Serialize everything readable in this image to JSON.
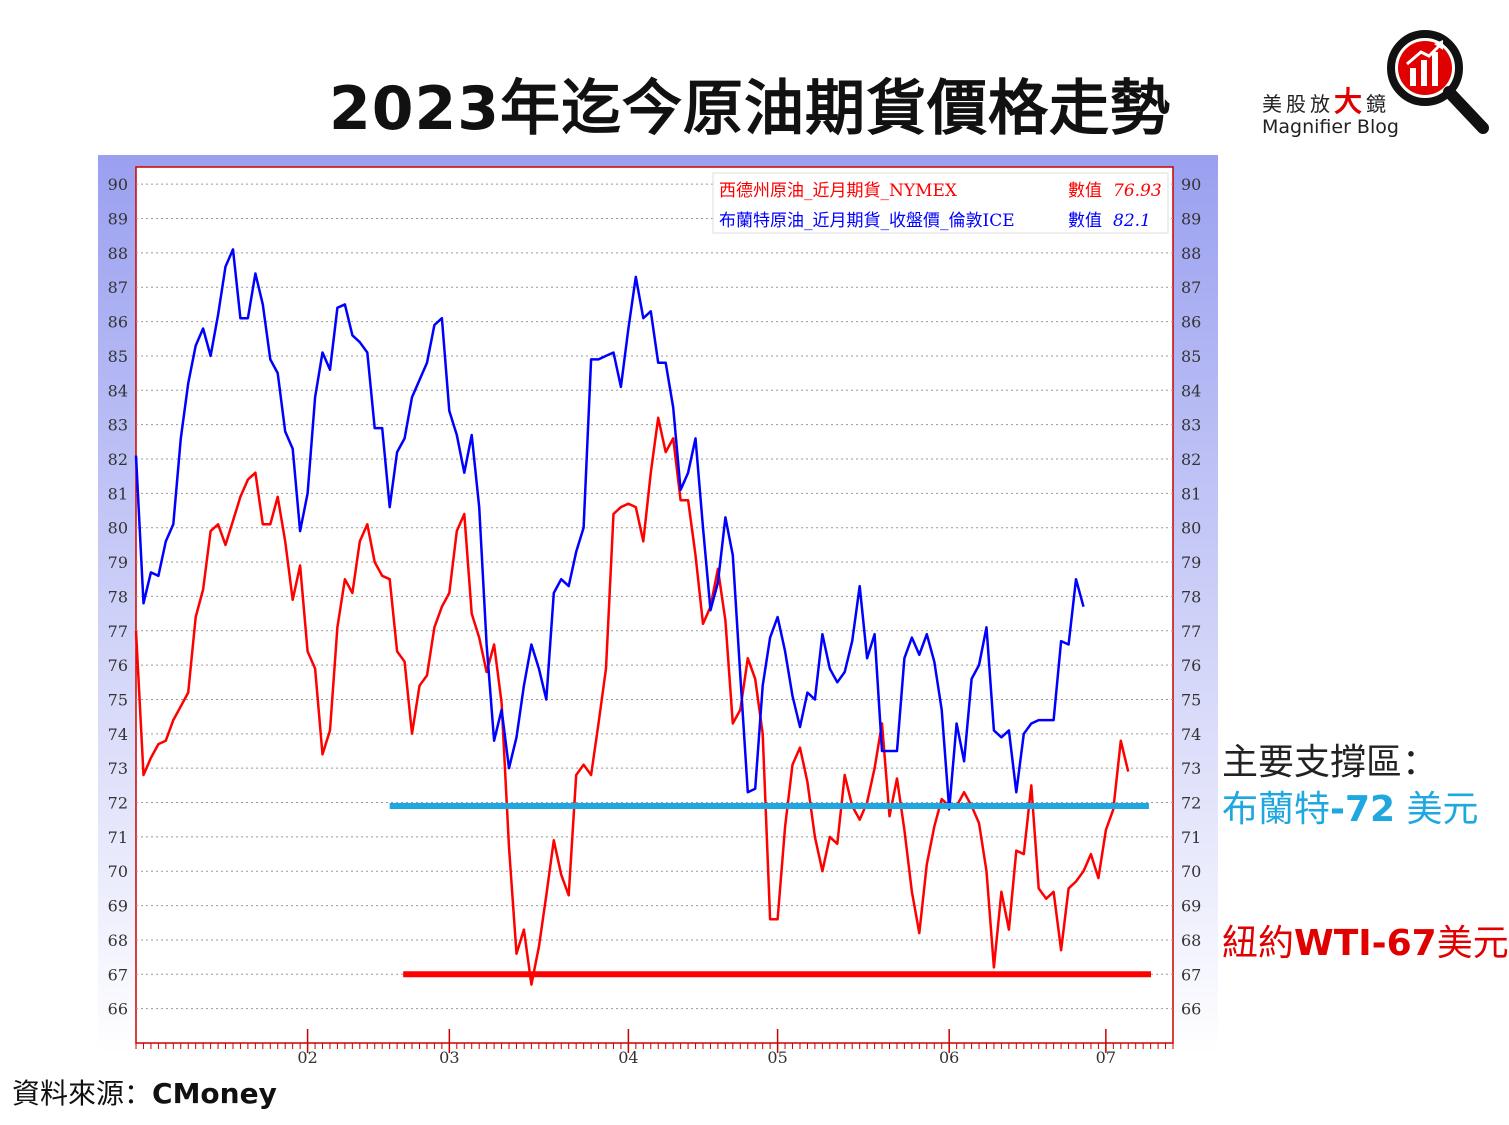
{
  "page": {
    "title": "2023年迄今原油期貨價格走勢",
    "logo": {
      "cn_1": "美股放",
      "cn_big": "大",
      "cn_2": "鏡",
      "en": "Magnifier Blog"
    },
    "support_title": "主要支撐區：",
    "brent_support": {
      "name": "布蘭特",
      "value": "-72",
      "unit": " 美元"
    },
    "wti_support": {
      "name": "紐約",
      "value": "WTI-67",
      "unit": "美元"
    },
    "source_label": "資料來源：",
    "source_value": "CMoney"
  },
  "colors": {
    "wti": "#ff0000",
    "brent": "#0000ff",
    "brent_support": "#1fa7e0",
    "wti_support": "#ff0000",
    "axis_band": "#9aa0f0"
  },
  "chart_data": {
    "type": "line",
    "title": "",
    "xlabel": "",
    "ylabel": "",
    "ylim": [
      65,
      90.5
    ],
    "x_ticks": [
      {
        "label": "02",
        "pos": 23
      },
      {
        "label": "03",
        "pos": 42
      },
      {
        "label": "04",
        "pos": 66
      },
      {
        "label": "05",
        "pos": 86
      },
      {
        "label": "06",
        "pos": 109
      },
      {
        "label": "07",
        "pos": 130
      }
    ],
    "x_range": [
      0,
      139
    ],
    "y_ticks": [
      66,
      67,
      68,
      69,
      70,
      71,
      72,
      73,
      74,
      75,
      76,
      77,
      78,
      79,
      80,
      81,
      82,
      83,
      84,
      85,
      86,
      87,
      88,
      89,
      90
    ],
    "grid": true,
    "legend_position": "top-right",
    "series": [
      {
        "name": "西德州原油_近月期貨_NYMEX",
        "value_label": "數值",
        "value": "76.93",
        "color": "#ff0000",
        "values": [
          77.0,
          72.8,
          73.3,
          73.7,
          73.8,
          74.4,
          74.8,
          75.2,
          77.4,
          78.2,
          79.9,
          80.1,
          79.5,
          80.2,
          80.9,
          81.4,
          81.6,
          80.1,
          80.1,
          80.9,
          79.6,
          77.9,
          78.9,
          76.4,
          75.9,
          73.4,
          74.1,
          77.1,
          78.5,
          78.1,
          79.6,
          80.1,
          79.0,
          78.6,
          78.5,
          76.4,
          76.1,
          74.0,
          75.4,
          75.7,
          77.1,
          77.7,
          78.1,
          79.9,
          80.4,
          77.5,
          76.8,
          75.8,
          76.6,
          74.9,
          70.7,
          67.6,
          68.3,
          66.7,
          67.8,
          69.3,
          70.9,
          69.9,
          69.3,
          72.8,
          73.1,
          72.8,
          74.3,
          75.9,
          80.4,
          80.6,
          80.7,
          80.6,
          79.6,
          81.6,
          83.2,
          82.2,
          82.6,
          80.8,
          80.8,
          79.2,
          77.2,
          77.7,
          78.8,
          77.3,
          74.3,
          74.7,
          76.2,
          75.6,
          74.0,
          68.6,
          68.6,
          71.3,
          73.1,
          73.6,
          72.6,
          71.0,
          70.0,
          71.0,
          70.8,
          72.8,
          71.9,
          71.5,
          72.0,
          73.0,
          74.3,
          71.6,
          72.7,
          71.2,
          69.4,
          68.2,
          70.2,
          71.3,
          72.1,
          71.9,
          71.9,
          72.3,
          71.9,
          71.4,
          70.0,
          67.2,
          69.4,
          68.3,
          70.6,
          70.5,
          72.5,
          69.5,
          69.2,
          69.4,
          67.7,
          69.5,
          69.7,
          70.0,
          70.5,
          69.8,
          71.2,
          71.8,
          73.8,
          72.9
        ],
        "x_start": 0
      },
      {
        "name": "布蘭特原油_近月期貨_收盤價_倫敦ICE",
        "value_label": "數值",
        "value": "82.1",
        "color": "#0000ff",
        "values": [
          82.1,
          77.8,
          78.7,
          78.6,
          79.6,
          80.1,
          82.6,
          84.2,
          85.3,
          85.8,
          85.0,
          86.2,
          87.6,
          88.1,
          86.1,
          86.1,
          87.4,
          86.5,
          84.9,
          84.5,
          82.8,
          82.3,
          79.9,
          81.0,
          83.8,
          85.1,
          84.6,
          86.4,
          86.5,
          85.6,
          85.4,
          85.1,
          82.9,
          82.9,
          80.6,
          82.2,
          82.6,
          83.8,
          84.3,
          84.8,
          85.9,
          86.1,
          83.4,
          82.7,
          81.6,
          82.7,
          80.6,
          76.6,
          73.8,
          74.7,
          73.0,
          73.9,
          75.4,
          76.6,
          75.9,
          75.0,
          78.1,
          78.5,
          78.3,
          79.3,
          80.0,
          84.9,
          84.9,
          85.0,
          85.1,
          84.1,
          85.8,
          87.3,
          86.1,
          86.3,
          84.8,
          84.8,
          83.5,
          81.1,
          81.6,
          82.6,
          80.0,
          77.6,
          78.4,
          80.3,
          79.2,
          75.7,
          72.3,
          72.4,
          75.4,
          76.8,
          77.4,
          76.4,
          75.1,
          74.2,
          75.2,
          75.0,
          76.9,
          75.9,
          75.5,
          75.8,
          76.7,
          78.3,
          76.2,
          76.9,
          73.5,
          73.5,
          73.5,
          76.2,
          76.8,
          76.3,
          76.9,
          76.1,
          74.7,
          71.8,
          74.3,
          73.2,
          75.6,
          76.0,
          77.1,
          74.1,
          73.9,
          74.1,
          72.3,
          74.0,
          74.3,
          74.4,
          74.4,
          74.4,
          76.7,
          76.6,
          78.5,
          77.7
        ],
        "x_start": 0
      }
    ],
    "reference_lines": [
      {
        "label": "布蘭特-72 美元",
        "y": 71.9,
        "color": "#1fa7e0"
      },
      {
        "label": "紐約WTI-67美元",
        "y": 67.0,
        "color": "#ff0000"
      }
    ]
  }
}
